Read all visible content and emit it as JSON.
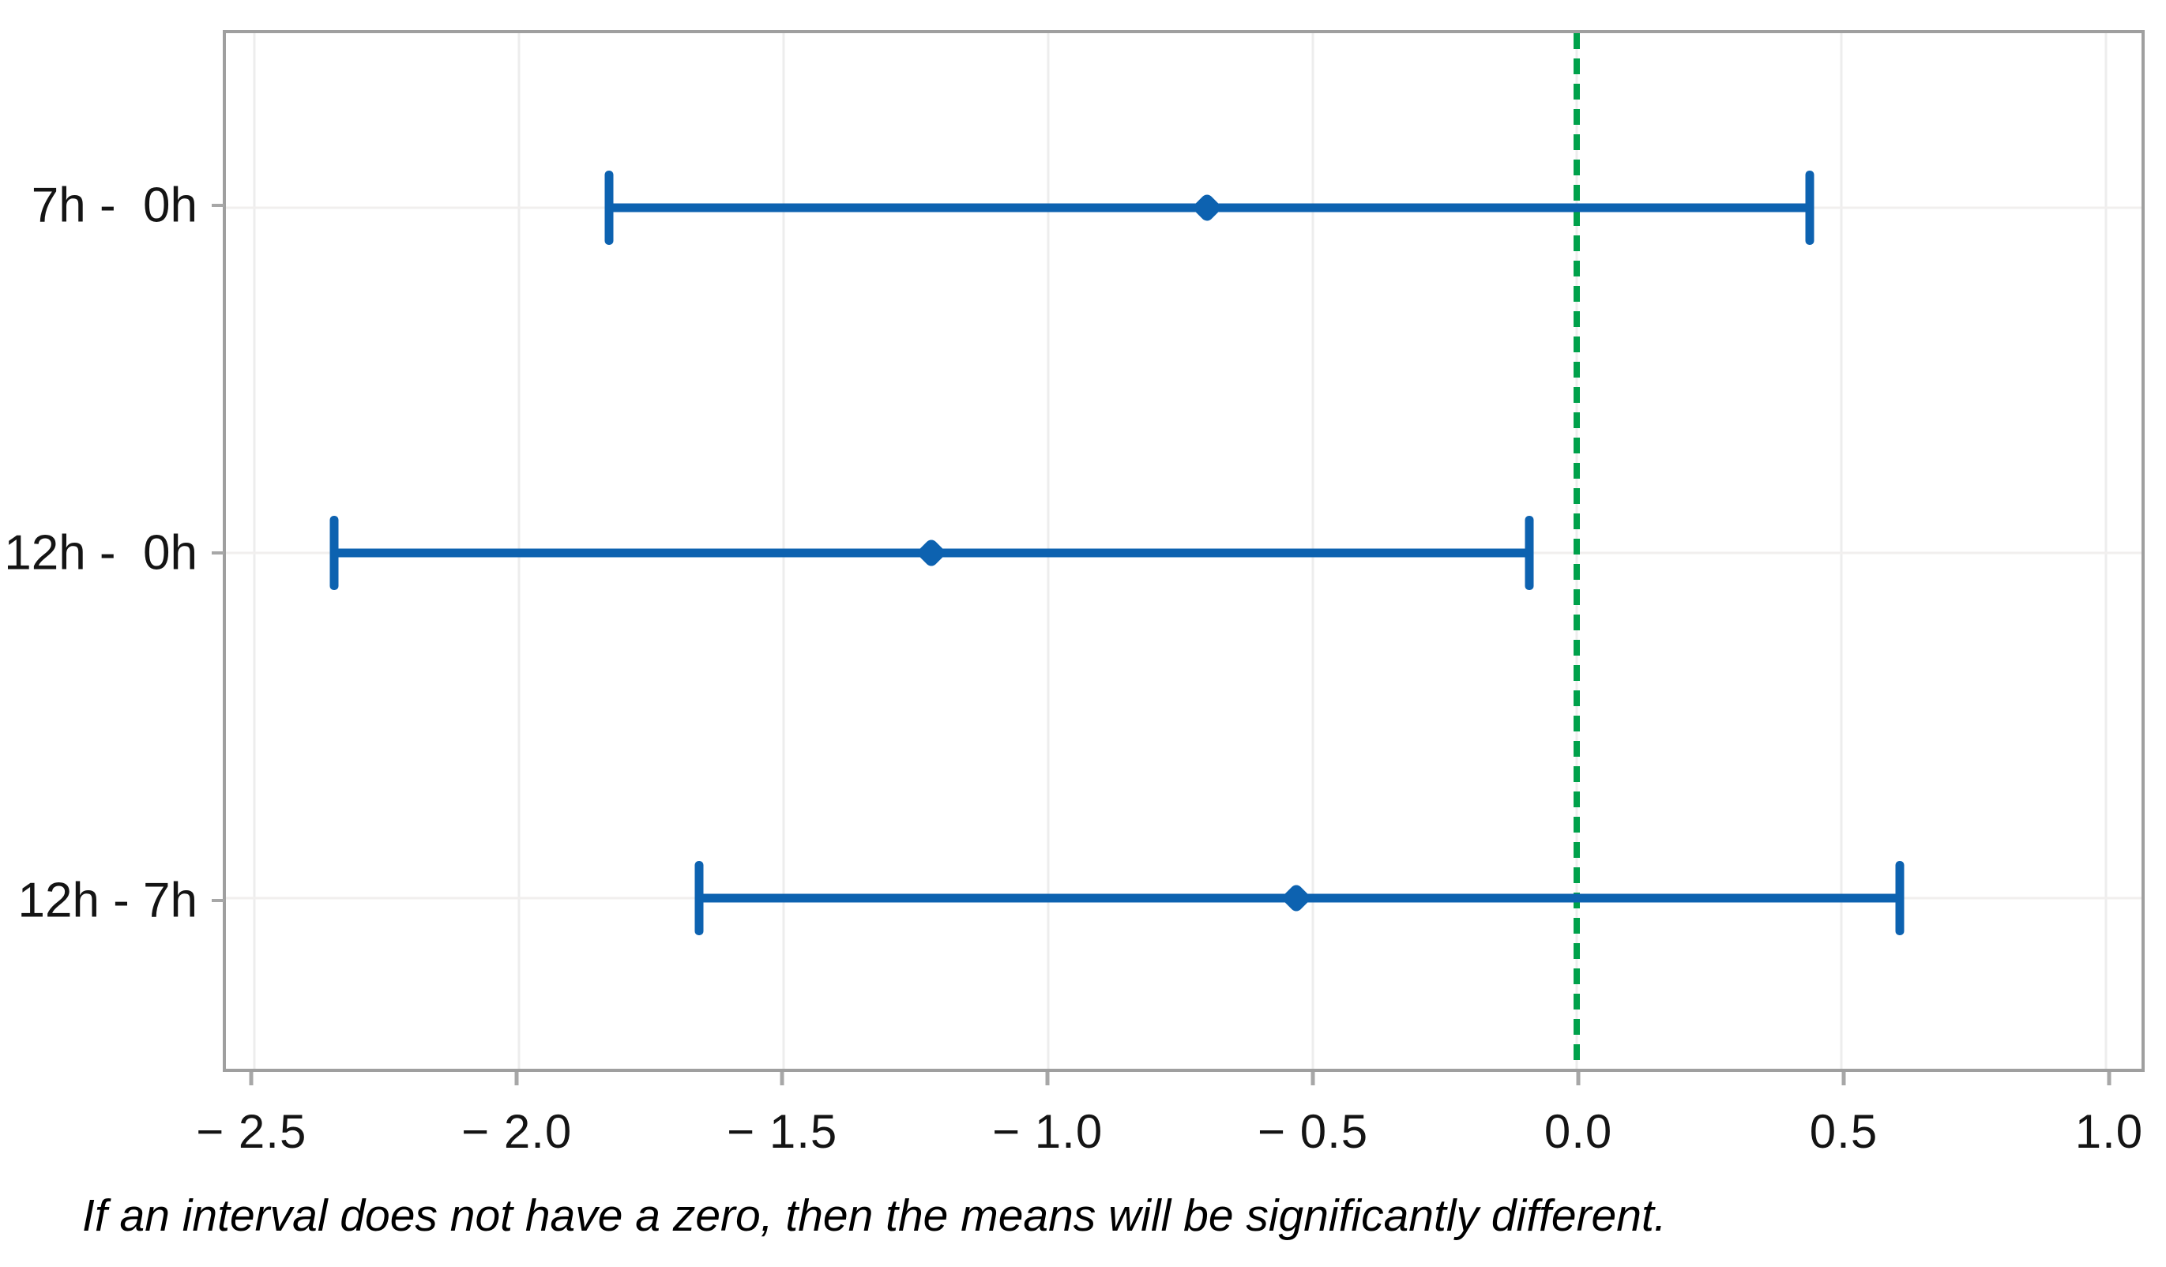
{
  "chart_data": {
    "type": "errorbar",
    "title": "",
    "xlabel": "",
    "ylabel": "",
    "categories": [
      "7h -  0h",
      "12h -  0h",
      "12h - 7h"
    ],
    "comparisons": [
      {
        "label": "7h -  0h",
        "center": -0.7,
        "lower": -1.83,
        "upper": 0.44
      },
      {
        "label": "12h -  0h",
        "center": -1.22,
        "lower": -2.35,
        "upper": -0.09
      },
      {
        "label": "12h - 7h",
        "center": -0.53,
        "lower": -1.66,
        "upper": 0.61
      }
    ],
    "x_ticks": [
      -2.5,
      -2.0,
      -1.5,
      -1.0,
      -0.5,
      0.0,
      0.5,
      1.0
    ],
    "x_tick_labels": [
      "− 2.5",
      "− 2.0",
      "− 1.5",
      "− 1.0",
      "− 0.5",
      "0.0",
      "0.5",
      "1.0"
    ],
    "xlim": [
      -2.554,
      1.067
    ],
    "row_positions_pct": [
      16.83,
      50.19,
      83.55
    ],
    "reference_line": {
      "x": 0.0,
      "style": "dashed",
      "color": "#00a14b"
    },
    "grid": "on",
    "legend_position": "none",
    "colors": {
      "interval": "#0d62b0",
      "reference": "#00a14b",
      "grid": "#ededed",
      "axis_border": "#9f9f9f",
      "tick": "#a7a7a7",
      "text": "#141414"
    },
    "caption": "If an interval does not have a zero, then the means will be significantly different."
  }
}
